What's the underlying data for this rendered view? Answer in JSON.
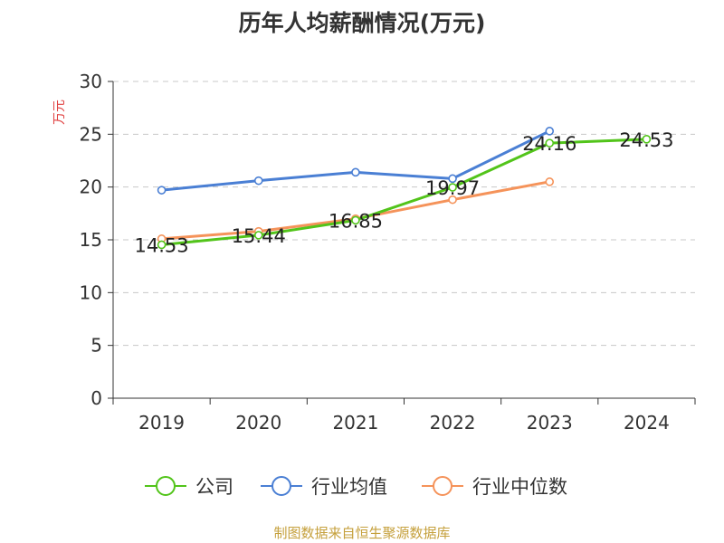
{
  "chart_data": {
    "type": "line",
    "title": "历年人均薪酬情况(万元)",
    "ylabel": "万元",
    "xlabel": "",
    "ylim": [
      0,
      30
    ],
    "yticks": [
      0,
      5,
      10,
      15,
      20,
      25,
      30
    ],
    "categories": [
      "2019",
      "2020",
      "2021",
      "2022",
      "2023",
      "2024"
    ],
    "grid": true,
    "legend_position": "bottom",
    "series": [
      {
        "name": "公司",
        "color": "#52c41a",
        "values": [
          14.53,
          15.44,
          16.85,
          19.97,
          24.16,
          24.53
        ],
        "labels": [
          "14.53",
          "15.44",
          "16.85",
          "19.97",
          "24.16",
          "24.53"
        ]
      },
      {
        "name": "行业均值",
        "color": "#4a7fd4",
        "values": [
          19.7,
          20.6,
          21.4,
          20.8,
          25.3,
          null
        ]
      },
      {
        "name": "行业中位数",
        "color": "#f5935a",
        "values": [
          15.1,
          15.8,
          17.0,
          18.8,
          20.5,
          null
        ]
      }
    ]
  },
  "source_note": "制图数据来自恒生聚源数据库"
}
